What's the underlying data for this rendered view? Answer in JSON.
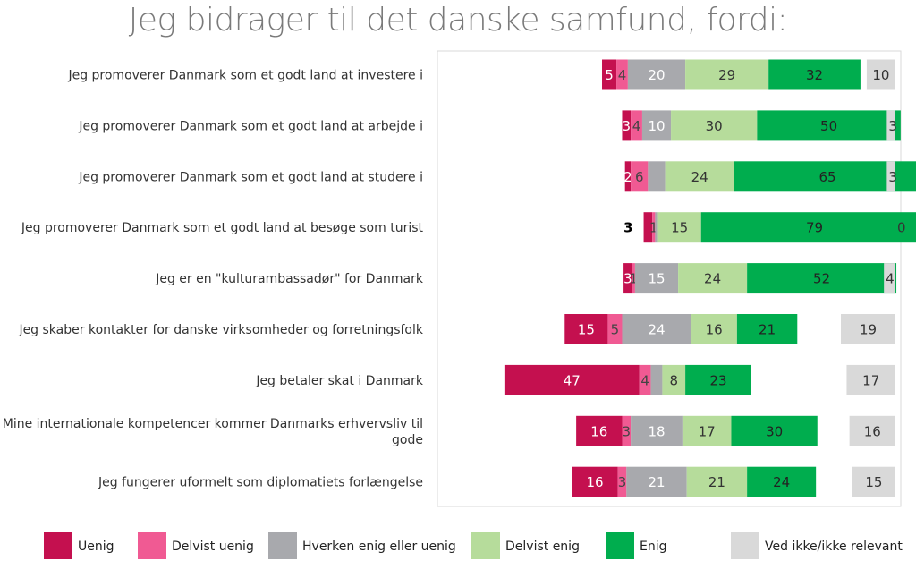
{
  "chart_data": {
    "type": "bar",
    "title": "Jeg bidrager til det danske samfund, fordi:",
    "orientation": "horizontal",
    "stacked": true,
    "categories": [
      [
        "Jeg promoverer Danmark som et godt land at investere i"
      ],
      [
        "Jeg promoverer Danmark som et godt land at arbejde i"
      ],
      [
        "Jeg promoverer Danmark som et godt land at studere i"
      ],
      [
        "Jeg promoverer Danmark som et godt land at besøge som turist"
      ],
      [
        "Jeg er en \"kulturambassadør\" for Danmark"
      ],
      [
        "Jeg skaber kontakter for danske virksomheder og forretningsfolk"
      ],
      [
        "Jeg betaler skat i Danmark"
      ],
      [
        "Mine internationale kompetencer kommer Danmarks erhvervsliv til",
        "gode"
      ],
      [
        "Jeg fungerer uformelt som diplomatiets forlængelse"
      ]
    ],
    "series": [
      {
        "name": "Uenig",
        "color": "#c4104f",
        "text_color": "#ffffff",
        "values": [
          5,
          3,
          2,
          3,
          3,
          15,
          47,
          16,
          16
        ]
      },
      {
        "name": "Delvist uenig",
        "color": "#f05a93",
        "text_color": "#444444",
        "values": [
          4,
          4,
          6,
          1,
          1,
          5,
          4,
          3,
          3
        ]
      },
      {
        "name": "Hverken enig eller uenig",
        "color": "#a8a9ad",
        "text_color": "#ffffff",
        "values": [
          20,
          10,
          6,
          1,
          15,
          24,
          4,
          18,
          21
        ]
      },
      {
        "name": "Delvist enig",
        "color": "#b6dc9b",
        "text_color": "#333333",
        "values": [
          29,
          30,
          24,
          15,
          24,
          16,
          8,
          17,
          21
        ]
      },
      {
        "name": "Enig",
        "color": "#00ad4e",
        "text_color": "#222222",
        "values": [
          32,
          50,
          65,
          79,
          52,
          21,
          23,
          30,
          24
        ]
      }
    ],
    "extra_series": {
      "name": "Ved ikke/ikke relevant",
      "color": "#d9d9d9",
      "text_color": "#333333",
      "values": [
        10,
        3,
        3,
        0,
        4,
        19,
        17,
        16,
        15
      ]
    },
    "value_labels": [
      [
        "5",
        "4",
        "20",
        "29",
        "32"
      ],
      [
        "3",
        "4",
        "10",
        "30",
        "50"
      ],
      [
        "2",
        "6",
        "",
        "24",
        "65"
      ],
      [
        "",
        "1",
        "",
        "15",
        "79"
      ],
      [
        "3",
        "1",
        "15",
        "24",
        "52"
      ],
      [
        "15",
        "5",
        "24",
        "16",
        "21"
      ],
      [
        "47",
        "4",
        "",
        "8",
        "23"
      ],
      [
        "16",
        "3",
        "18",
        "17",
        "30"
      ],
      [
        "16",
        "3",
        "21",
        "21",
        "24"
      ]
    ],
    "outside_labels": [
      {
        "row": 3,
        "text": "3"
      }
    ],
    "legend_position": "bottom",
    "grid": false
  }
}
